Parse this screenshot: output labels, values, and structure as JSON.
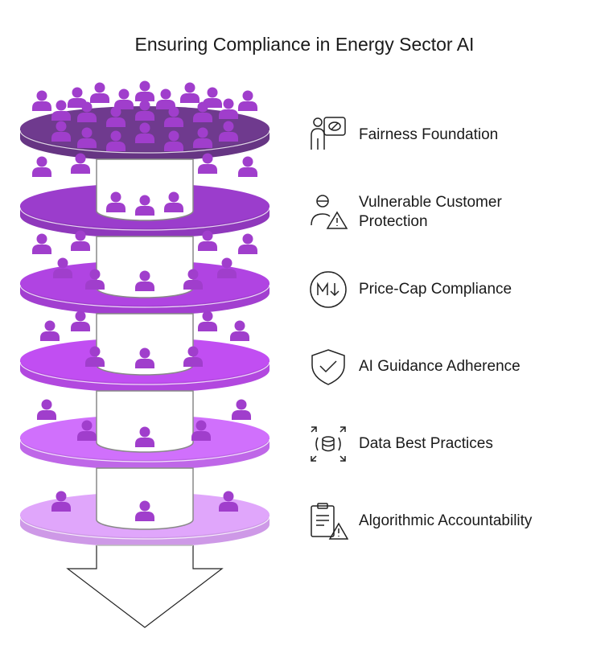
{
  "title": "Ensuring Compliance in Energy Sector AI",
  "layers": [
    {
      "label": "Fairness Foundation",
      "icon": "presenter-chart-icon",
      "color": "#6f3a8e"
    },
    {
      "label": "Vulnerable Customer Protection",
      "icon": "person-warning-icon",
      "color": "#9b3dcc"
    },
    {
      "label": "Price-Cap Compliance",
      "icon": "price-cap-icon",
      "color": "#b044e2"
    },
    {
      "label": "AI Guidance Adherence",
      "icon": "shield-check-icon",
      "color": "#c14ef2"
    },
    {
      "label": "Data Best Practices",
      "icon": "database-expand-icon",
      "color": "#d070fc"
    },
    {
      "label": "Algorithmic Accountability",
      "icon": "clipboard-warning-icon",
      "color": "#e0a6fb"
    }
  ],
  "person_color": "#a03ecc"
}
